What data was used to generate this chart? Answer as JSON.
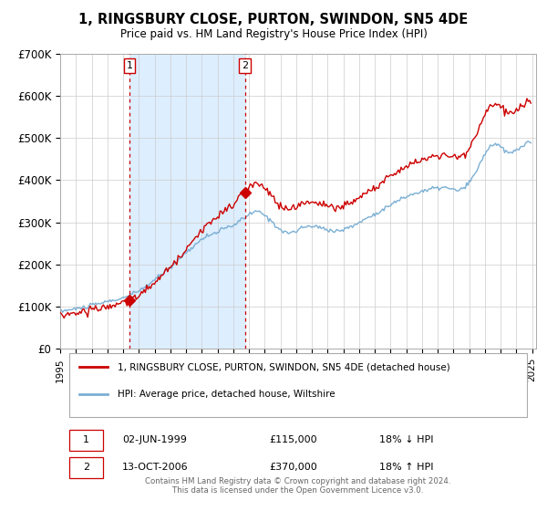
{
  "title": "1, RINGSBURY CLOSE, PURTON, SWINDON, SN5 4DE",
  "subtitle": "Price paid vs. HM Land Registry's House Price Index (HPI)",
  "legend_line1": "1, RINGSBURY CLOSE, PURTON, SWINDON, SN5 4DE (detached house)",
  "legend_line2": "HPI: Average price, detached house, Wiltshire",
  "sale1_date": "02-JUN-1999",
  "sale1_price": 115000,
  "sale1_label": "18% ↓ HPI",
  "sale2_date": "13-OCT-2006",
  "sale2_price": 370000,
  "sale2_label": "18% ↑ HPI",
  "footer": "Contains HM Land Registry data © Crown copyright and database right 2024.\nThis data is licensed under the Open Government Licence v3.0.",
  "red_color": "#cc0000",
  "blue_color": "#7bafd4",
  "bg_shade_color": "#ddeeff",
  "ylim": [
    0,
    700000
  ],
  "yticks": [
    0,
    100000,
    200000,
    300000,
    400000,
    500000,
    600000,
    700000
  ],
  "ytick_labels": [
    "£0",
    "£100K",
    "£200K",
    "£300K",
    "£400K",
    "£500K",
    "£600K",
    "£700K"
  ]
}
